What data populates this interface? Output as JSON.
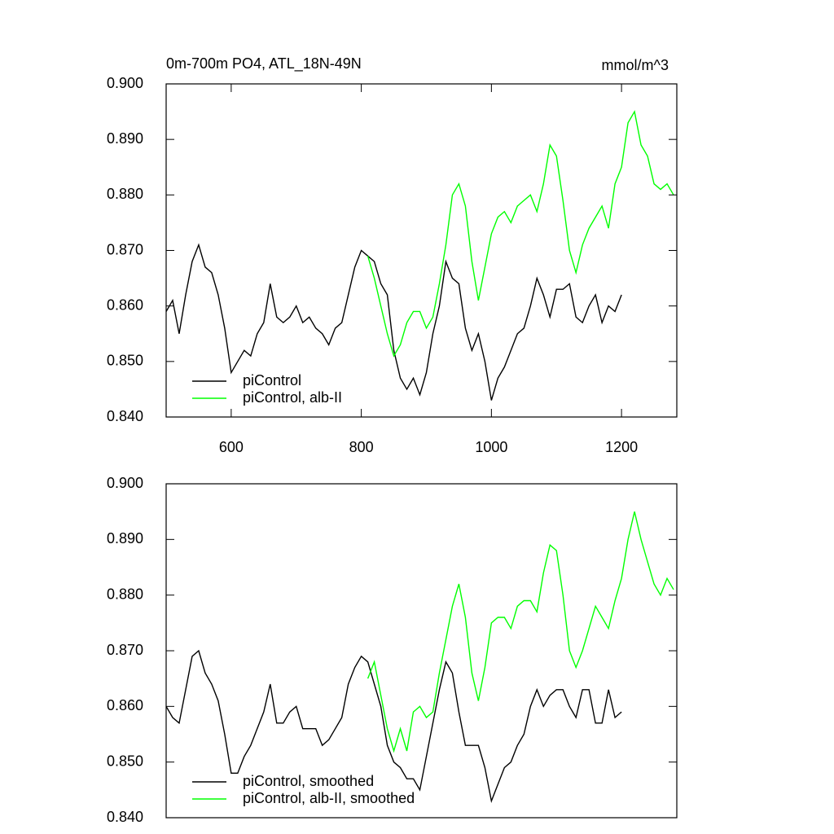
{
  "chart_data": [
    {
      "type": "line",
      "title": "0m-700m PO4, ATL_18N-49N",
      "units": "mmol/m^3",
      "xlim": [
        500,
        1285
      ],
      "xticks": [
        600,
        800,
        1000,
        1200
      ],
      "ylim": [
        0.84,
        0.9
      ],
      "yticks": [
        {
          "value": 0.84,
          "label": "0.840"
        },
        {
          "value": 0.85,
          "label": "0.850"
        },
        {
          "value": 0.86,
          "label": "0.860"
        },
        {
          "value": 0.87,
          "label": "0.870"
        },
        {
          "value": 0.88,
          "label": "0.880"
        },
        {
          "value": 0.89,
          "label": "0.890"
        },
        {
          "value": 0.9,
          "label": "0.900"
        }
      ],
      "legend": "lower left",
      "series": [
        {
          "name": "piControl",
          "color": "#000000",
          "x": [
            500,
            510,
            520,
            530,
            540,
            550,
            560,
            570,
            580,
            590,
            600,
            610,
            620,
            630,
            640,
            650,
            660,
            670,
            680,
            690,
            700,
            710,
            720,
            730,
            740,
            750,
            760,
            770,
            780,
            790,
            800,
            810,
            820,
            830,
            840,
            850,
            860,
            870,
            880,
            890,
            900,
            910,
            920,
            930,
            940,
            950,
            960,
            970,
            980,
            990,
            1000,
            1010,
            1020,
            1030,
            1040,
            1050,
            1060,
            1070,
            1080,
            1090,
            1100,
            1110,
            1120,
            1130,
            1140,
            1150,
            1160,
            1170,
            1180,
            1190,
            1200
          ],
          "values": [
            0.859,
            0.861,
            0.855,
            0.862,
            0.868,
            0.871,
            0.867,
            0.866,
            0.862,
            0.856,
            0.848,
            0.85,
            0.852,
            0.851,
            0.855,
            0.857,
            0.864,
            0.858,
            0.857,
            0.858,
            0.86,
            0.857,
            0.858,
            0.856,
            0.855,
            0.853,
            0.856,
            0.857,
            0.862,
            0.867,
            0.87,
            0.869,
            0.868,
            0.864,
            0.862,
            0.852,
            0.847,
            0.845,
            0.847,
            0.844,
            0.848,
            0.855,
            0.86,
            0.868,
            0.865,
            0.864,
            0.856,
            0.852,
            0.855,
            0.85,
            0.843,
            0.847,
            0.849,
            0.852,
            0.855,
            0.856,
            0.86,
            0.865,
            0.862,
            0.858,
            0.863,
            0.863,
            0.864,
            0.858,
            0.857,
            0.86,
            0.862,
            0.857,
            0.86,
            0.859,
            0.862
          ]
        },
        {
          "name": "piControl, alb-II",
          "color": "#00ff00",
          "x": [
            810,
            820,
            830,
            840,
            850,
            860,
            870,
            880,
            890,
            900,
            910,
            920,
            930,
            940,
            950,
            960,
            970,
            980,
            990,
            1000,
            1010,
            1020,
            1030,
            1040,
            1050,
            1060,
            1070,
            1080,
            1090,
            1100,
            1110,
            1120,
            1130,
            1140,
            1150,
            1160,
            1170,
            1180,
            1190,
            1200,
            1210,
            1220,
            1230,
            1240,
            1250,
            1260,
            1270,
            1280
          ],
          "values": [
            0.869,
            0.865,
            0.86,
            0.855,
            0.851,
            0.853,
            0.857,
            0.859,
            0.859,
            0.856,
            0.858,
            0.864,
            0.871,
            0.88,
            0.882,
            0.878,
            0.868,
            0.861,
            0.867,
            0.873,
            0.876,
            0.877,
            0.875,
            0.878,
            0.879,
            0.88,
            0.877,
            0.882,
            0.889,
            0.887,
            0.879,
            0.87,
            0.866,
            0.871,
            0.874,
            0.876,
            0.878,
            0.874,
            0.882,
            0.885,
            0.893,
            0.895,
            0.889,
            0.887,
            0.882,
            0.881,
            0.882,
            0.88
          ]
        }
      ]
    },
    {
      "type": "line",
      "xlim": [
        500,
        1285
      ],
      "ylim": [
        0.84,
        0.9
      ],
      "yticks": [
        {
          "value": 0.84,
          "label": "0.840"
        },
        {
          "value": 0.85,
          "label": "0.850"
        },
        {
          "value": 0.86,
          "label": "0.860"
        },
        {
          "value": 0.87,
          "label": "0.870"
        },
        {
          "value": 0.88,
          "label": "0.880"
        },
        {
          "value": 0.89,
          "label": "0.890"
        },
        {
          "value": 0.9,
          "label": "0.900"
        }
      ],
      "legend": "lower left",
      "series": [
        {
          "name": "piControl, smoothed",
          "color": "#000000",
          "x": [
            500,
            510,
            520,
            530,
            540,
            550,
            560,
            570,
            580,
            590,
            600,
            610,
            620,
            630,
            640,
            650,
            660,
            670,
            680,
            690,
            700,
            710,
            720,
            730,
            740,
            750,
            760,
            770,
            780,
            790,
            800,
            810,
            820,
            830,
            840,
            850,
            860,
            870,
            880,
            890,
            900,
            910,
            920,
            930,
            940,
            950,
            960,
            970,
            980,
            990,
            1000,
            1010,
            1020,
            1030,
            1040,
            1050,
            1060,
            1070,
            1080,
            1090,
            1100,
            1110,
            1120,
            1130,
            1140,
            1150,
            1160,
            1170,
            1180,
            1190,
            1200
          ],
          "values": [
            0.86,
            0.858,
            0.857,
            0.863,
            0.869,
            0.87,
            0.866,
            0.864,
            0.861,
            0.855,
            0.848,
            0.848,
            0.851,
            0.853,
            0.856,
            0.859,
            0.864,
            0.857,
            0.857,
            0.859,
            0.86,
            0.856,
            0.856,
            0.856,
            0.853,
            0.854,
            0.856,
            0.858,
            0.864,
            0.867,
            0.869,
            0.868,
            0.864,
            0.86,
            0.853,
            0.85,
            0.849,
            0.847,
            0.847,
            0.845,
            0.851,
            0.857,
            0.863,
            0.868,
            0.866,
            0.859,
            0.853,
            0.853,
            0.853,
            0.849,
            0.843,
            0.846,
            0.849,
            0.85,
            0.853,
            0.855,
            0.86,
            0.863,
            0.86,
            0.862,
            0.863,
            0.863,
            0.86,
            0.858,
            0.863,
            0.863,
            0.857,
            0.857,
            0.863,
            0.858,
            0.859
          ]
        },
        {
          "name": "piControl, alb-II, smoothed",
          "color": "#00ff00",
          "x": [
            810,
            820,
            830,
            840,
            850,
            860,
            870,
            880,
            890,
            900,
            910,
            920,
            930,
            940,
            950,
            960,
            970,
            980,
            990,
            1000,
            1010,
            1020,
            1030,
            1040,
            1050,
            1060,
            1070,
            1080,
            1090,
            1100,
            1110,
            1120,
            1130,
            1140,
            1150,
            1160,
            1170,
            1180,
            1190,
            1200,
            1210,
            1220,
            1230,
            1240,
            1250,
            1260,
            1270,
            1280
          ],
          "values": [
            0.865,
            0.868,
            0.862,
            0.856,
            0.852,
            0.856,
            0.852,
            0.859,
            0.86,
            0.858,
            0.859,
            0.866,
            0.872,
            0.878,
            0.882,
            0.876,
            0.866,
            0.861,
            0.867,
            0.875,
            0.876,
            0.876,
            0.874,
            0.878,
            0.879,
            0.879,
            0.877,
            0.884,
            0.889,
            0.888,
            0.88,
            0.87,
            0.867,
            0.87,
            0.874,
            0.878,
            0.876,
            0.874,
            0.879,
            0.883,
            0.89,
            0.895,
            0.89,
            0.886,
            0.882,
            0.88,
            0.883,
            0.881
          ]
        }
      ]
    }
  ]
}
